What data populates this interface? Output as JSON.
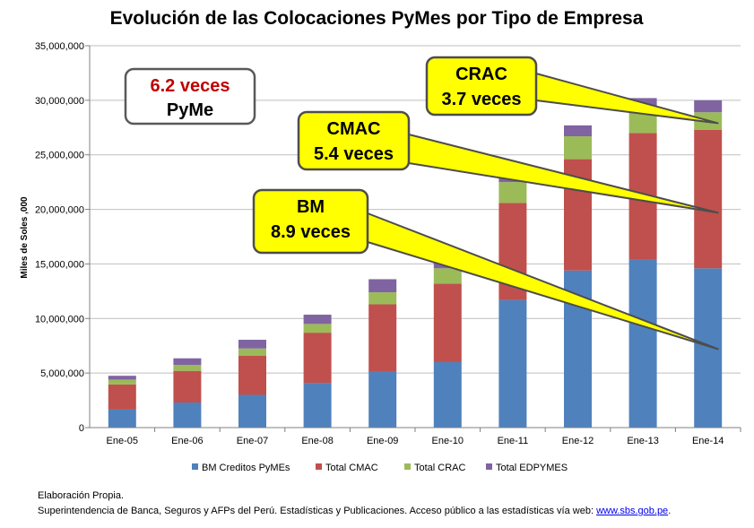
{
  "chart_data": {
    "type": "bar",
    "stacked": true,
    "title": "Evolución de las Colocaciones PyMes por Tipo de Empresa",
    "ylabel": "Miles de Soles ,000",
    "xlabel": "",
    "ylim": [
      0,
      35000000
    ],
    "yticks": [
      "0",
      "5,000,000",
      "10,000,000",
      "15,000,000",
      "20,000,000",
      "25,000,000",
      "30,000,000",
      "35,000,000"
    ],
    "grid": true,
    "legend_position": "bottom",
    "categories": [
      "Ene-05",
      "Ene-06",
      "Ene-07",
      "Ene-08",
      "Ene-09",
      "Ene-10",
      "Ene-11",
      "Ene-12",
      "Ene-13",
      "Ene-14"
    ],
    "series": [
      {
        "name": "BM Creditos PyMEs",
        "color": "#4f81bd",
        "values": [
          1650000,
          2300000,
          3000000,
          4100000,
          5100000,
          6000000,
          11700000,
          14400000,
          15400000,
          14600000
        ]
      },
      {
        "name": "Total CMAC",
        "color": "#c0504d",
        "values": [
          2300000,
          2900000,
          3600000,
          4600000,
          6200000,
          7200000,
          8900000,
          10200000,
          11600000,
          12700000
        ]
      },
      {
        "name": "Total CRAC",
        "color": "#9bbb59",
        "values": [
          450000,
          550000,
          650000,
          800000,
          1100000,
          1400000,
          1900000,
          2100000,
          2100000,
          1600000
        ]
      },
      {
        "name": "Total EDPYMES",
        "color": "#8064a2",
        "values": [
          350000,
          600000,
          800000,
          850000,
          1200000,
          900000,
          800000,
          1000000,
          1100000,
          1100000
        ]
      }
    ],
    "annotations": {
      "pyme_box": {
        "line1": "6.2 veces",
        "line2": "PyMe"
      },
      "callouts": [
        {
          "line1": "CRAC",
          "line2": "3.7 veces",
          "target_category": "Ene-14",
          "target_value": 27900000
        },
        {
          "line1": "CMAC",
          "line2": "5.4 veces",
          "target_category": "Ene-14",
          "target_value": 19700000
        },
        {
          "line1": "BM",
          "line2": "8.9 veces",
          "target_category": "Ene-14",
          "target_value": 7200000
        }
      ]
    }
  },
  "footer": {
    "line1": "Elaboración Propia.",
    "line2_text": "Superintendencia de Banca, Seguros y AFPs del Perú.  Estadísticas y Publicaciones. Acceso público a las estadísticas vía web: ",
    "link": "www.sbs.gob.pe",
    "line2_end": "."
  }
}
